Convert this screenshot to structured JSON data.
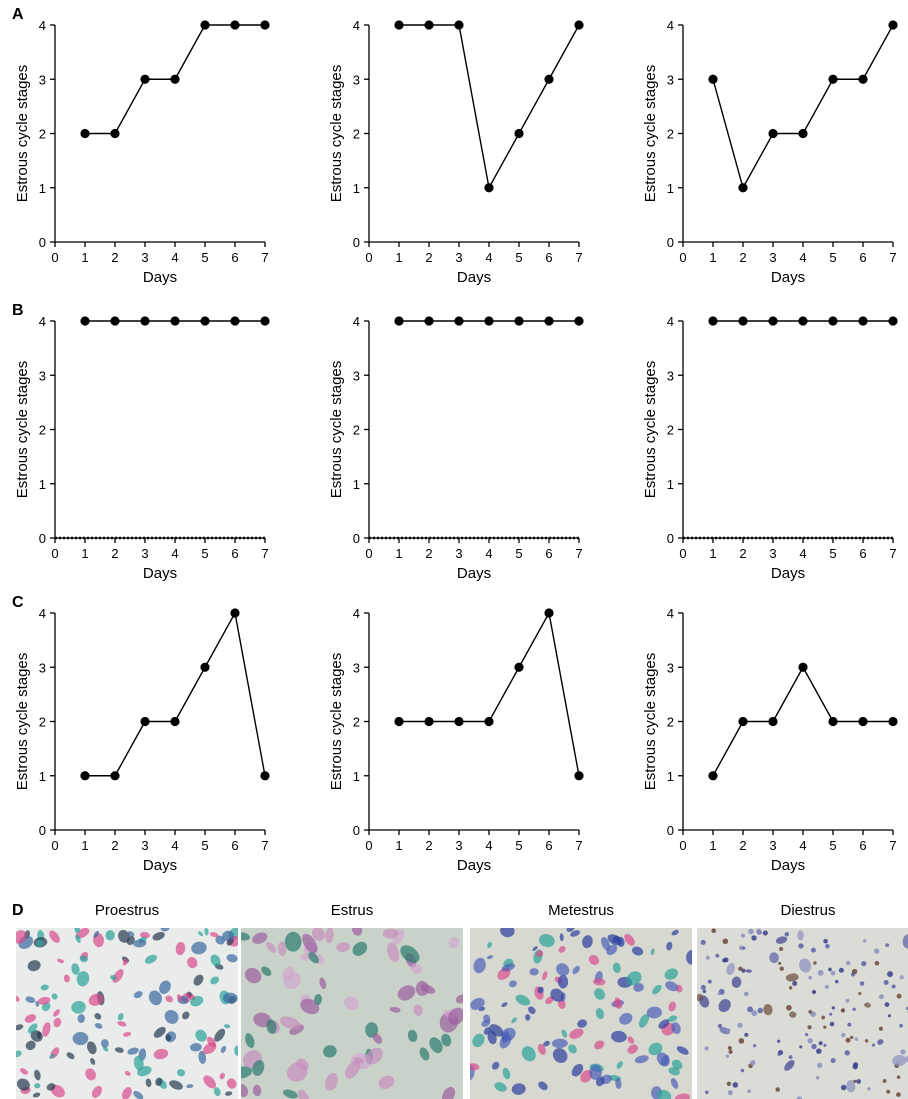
{
  "panel_labels": [
    "A",
    "B",
    "C",
    "D"
  ],
  "chart_data": [
    {
      "type": "line",
      "panel": "A",
      "x": [
        1,
        2,
        3,
        4,
        5,
        6,
        7
      ],
      "values": [
        2,
        2,
        3,
        3,
        4,
        4,
        4
      ],
      "xlabel": "Days",
      "ylabel": "Estrous cycle stages",
      "xlim": [
        0,
        7
      ],
      "ylim": [
        0,
        4
      ],
      "xticks": [
        "0",
        "1",
        "2",
        "3",
        "4",
        "5",
        "6",
        "7"
      ],
      "yticks": [
        "0",
        "1",
        "2",
        "3",
        "4"
      ]
    },
    {
      "type": "line",
      "panel": "A",
      "x": [
        1,
        2,
        3,
        4,
        5,
        6,
        7
      ],
      "values": [
        4,
        4,
        4,
        1,
        2,
        3,
        4
      ],
      "xlabel": "Days",
      "ylabel": "Estrous cycle stages",
      "xlim": [
        0,
        7
      ],
      "ylim": [
        0,
        4
      ],
      "xticks": [
        "0",
        "1",
        "2",
        "3",
        "4",
        "5",
        "6",
        "7"
      ],
      "yticks": [
        "0",
        "1",
        "2",
        "3",
        "4"
      ]
    },
    {
      "type": "line",
      "panel": "A",
      "x": [
        1,
        2,
        3,
        4,
        5,
        6,
        7
      ],
      "values": [
        3,
        1,
        2,
        2,
        3,
        3,
        4
      ],
      "xlabel": "Days",
      "ylabel": "Estrous cycle stages",
      "xlim": [
        0,
        7
      ],
      "ylim": [
        0,
        4
      ],
      "xticks": [
        "0",
        "1",
        "2",
        "3",
        "4",
        "5",
        "6",
        "7"
      ],
      "yticks": [
        "0",
        "1",
        "2",
        "3",
        "4"
      ]
    },
    {
      "type": "line",
      "panel": "B",
      "x": [
        1,
        2,
        3,
        4,
        5,
        6,
        7
      ],
      "values": [
        4,
        4,
        4,
        4,
        4,
        4,
        4
      ],
      "xlabel": "Days",
      "ylabel": "Estrous cycle stages",
      "xlim": [
        0,
        7
      ],
      "ylim": [
        0,
        4
      ],
      "xticks": [
        "0",
        "1",
        "2",
        "3",
        "4",
        "5",
        "6",
        "7"
      ],
      "yticks": [
        "0",
        "1",
        "2",
        "3",
        "4"
      ],
      "dotted_baseline": true
    },
    {
      "type": "line",
      "panel": "B",
      "x": [
        1,
        2,
        3,
        4,
        5,
        6,
        7
      ],
      "values": [
        4,
        4,
        4,
        4,
        4,
        4,
        4
      ],
      "xlabel": "Days",
      "ylabel": "Estrous cycle stages",
      "xlim": [
        0,
        7
      ],
      "ylim": [
        0,
        4
      ],
      "xticks": [
        "0",
        "1",
        "2",
        "3",
        "4",
        "5",
        "6",
        "7"
      ],
      "yticks": [
        "0",
        "1",
        "2",
        "3",
        "4"
      ],
      "dotted_baseline": true
    },
    {
      "type": "line",
      "panel": "B",
      "x": [
        1,
        2,
        3,
        4,
        5,
        6,
        7
      ],
      "values": [
        4,
        4,
        4,
        4,
        4,
        4,
        4
      ],
      "xlabel": "Days",
      "ylabel": "Estrous cycle stages",
      "xlim": [
        0,
        7
      ],
      "ylim": [
        0,
        4
      ],
      "xticks": [
        "0",
        "1",
        "2",
        "3",
        "4",
        "5",
        "6",
        "7"
      ],
      "yticks": [
        "0",
        "1",
        "2",
        "3",
        "4"
      ],
      "dotted_baseline": true
    },
    {
      "type": "line",
      "panel": "C",
      "x": [
        1,
        2,
        3,
        4,
        5,
        6,
        7
      ],
      "values": [
        1,
        1,
        2,
        2,
        3,
        4,
        1
      ],
      "xlabel": "Days",
      "ylabel": "Estrous cycle stages",
      "xlim": [
        0,
        7
      ],
      "ylim": [
        0,
        4
      ],
      "xticks": [
        "0",
        "1",
        "2",
        "3",
        "4",
        "5",
        "6",
        "7"
      ],
      "yticks": [
        "0",
        "1",
        "2",
        "3",
        "4"
      ]
    },
    {
      "type": "line",
      "panel": "C",
      "x": [
        1,
        2,
        3,
        4,
        5,
        6,
        7
      ],
      "values": [
        2,
        2,
        2,
        2,
        3,
        4,
        1
      ],
      "xlabel": "Days",
      "ylabel": "Estrous cycle stages",
      "xlim": [
        0,
        7
      ],
      "ylim": [
        0,
        4
      ],
      "xticks": [
        "0",
        "1",
        "2",
        "3",
        "4",
        "5",
        "6",
        "7"
      ],
      "yticks": [
        "0",
        "1",
        "2",
        "3",
        "4"
      ]
    },
    {
      "type": "line",
      "panel": "C",
      "x": [
        1,
        2,
        3,
        4,
        5,
        6,
        7
      ],
      "values": [
        1,
        2,
        2,
        3,
        2,
        2,
        2
      ],
      "xlabel": "Days",
      "ylabel": "Estrous cycle stages",
      "xlim": [
        0,
        7
      ],
      "ylim": [
        0,
        4
      ],
      "xticks": [
        "0",
        "1",
        "2",
        "3",
        "4",
        "5",
        "6",
        "7"
      ],
      "yticks": [
        "0",
        "1",
        "2",
        "3",
        "4"
      ]
    }
  ],
  "micrographs": [
    {
      "title": "Proestrus",
      "background": "#e9ecea",
      "colors": [
        "#2aa39a",
        "#d94b8c",
        "#243a4f",
        "#3b6aa0"
      ]
    },
    {
      "title": "Estrus",
      "background": "#c9d2c8",
      "colors": [
        "#c78dbd",
        "#d2a6cf",
        "#9b5fa0",
        "#2b7a6e"
      ]
    },
    {
      "title": "Metestrus",
      "background": "#d7d8d0",
      "colors": [
        "#2aa39a",
        "#d94b8c",
        "#2b3f9e",
        "#4b5fb8"
      ]
    },
    {
      "title": "Diestrus",
      "background": "#dcdcd6",
      "colors": [
        "#3a3f8f",
        "#5a5fa8",
        "#6a4a3a",
        "#8a8fc0"
      ]
    }
  ]
}
